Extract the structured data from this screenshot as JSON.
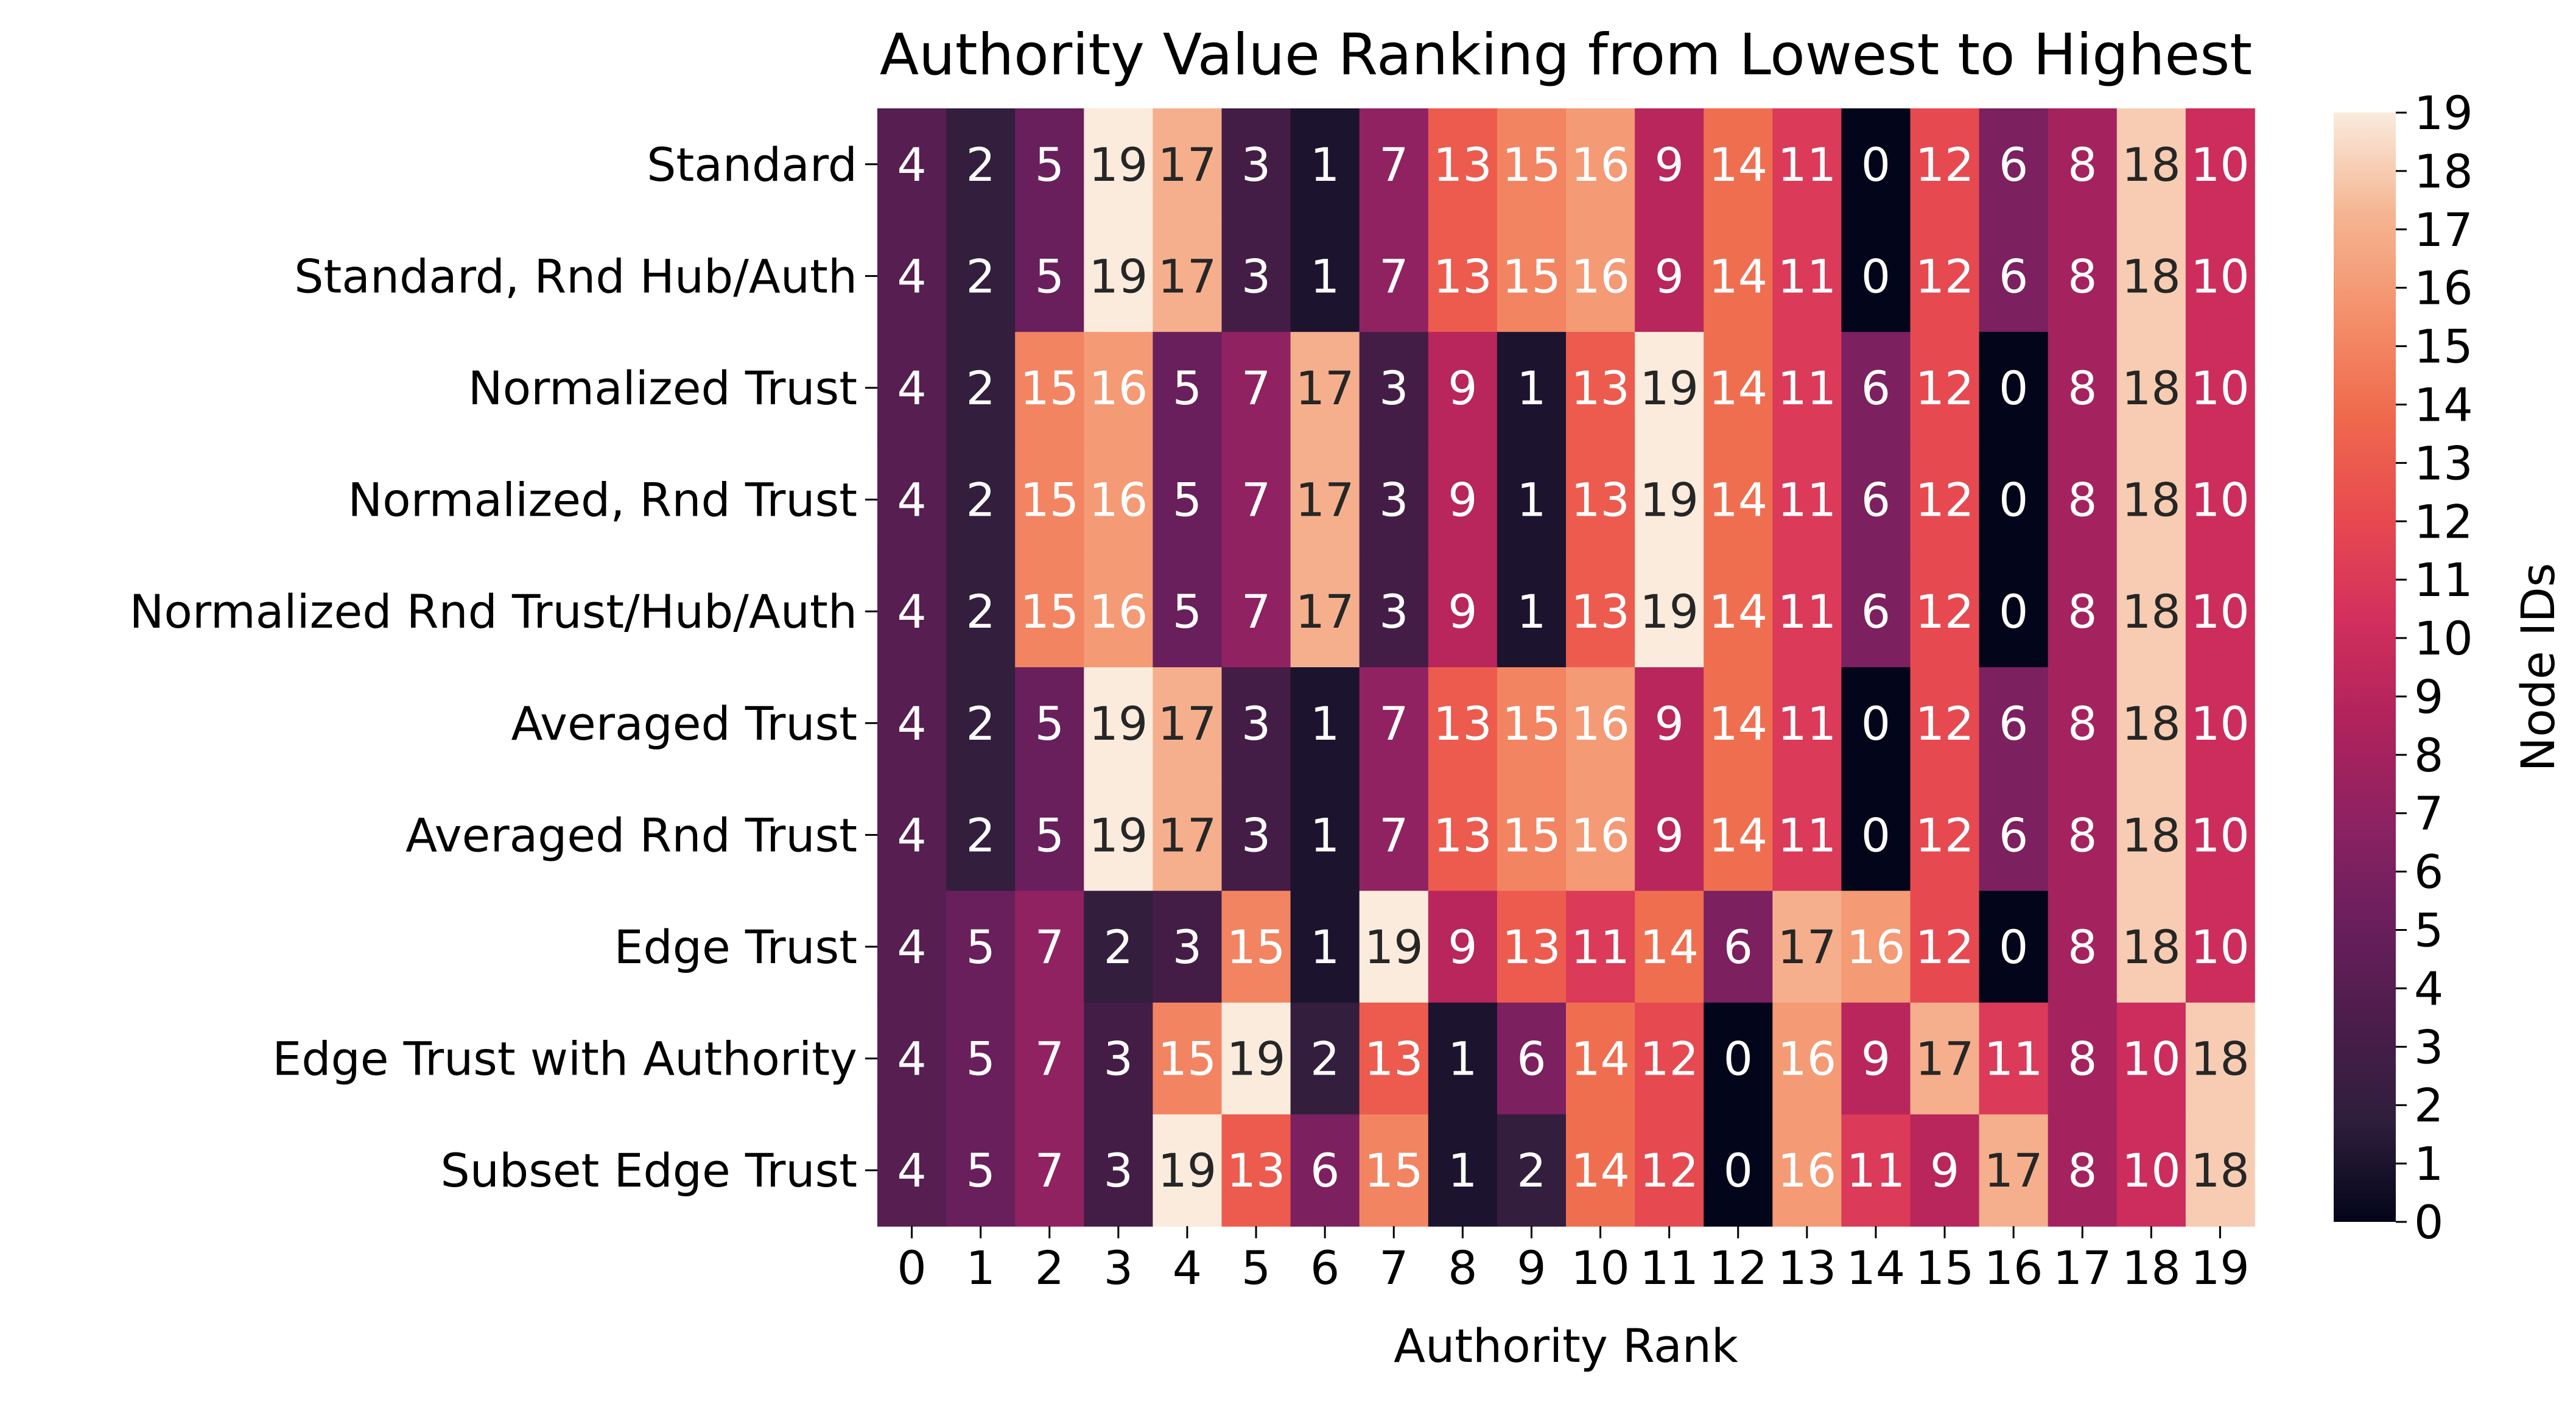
{
  "chart_data": {
    "type": "heatmap",
    "title": "Authority Value Ranking from Lowest to Highest",
    "xlabel": "Authority Rank",
    "ylabel": "",
    "colorbar_label": "Node IDs",
    "x": [
      0,
      1,
      2,
      3,
      4,
      5,
      6,
      7,
      8,
      9,
      10,
      11,
      12,
      13,
      14,
      15,
      16,
      17,
      18,
      19
    ],
    "x_tick_labels": [
      "0",
      "1",
      "2",
      "3",
      "4",
      "5",
      "6",
      "7",
      "8",
      "9",
      "10",
      "11",
      "12",
      "13",
      "14",
      "15",
      "16",
      "17",
      "18",
      "19"
    ],
    "rows": [
      "Standard",
      "Standard, Rnd Hub/Auth",
      "Normalized Trust",
      "Normalized, Rnd Trust",
      "Normalized Rnd Trust/Hub/Auth",
      "Averaged Trust",
      "Averaged Rnd Trust",
      "Edge Trust",
      "Edge Trust with Authority",
      "Subset Edge Trust"
    ],
    "values": [
      [
        4,
        2,
        5,
        19,
        17,
        3,
        1,
        7,
        13,
        15,
        16,
        9,
        14,
        11,
        0,
        12,
        6,
        8,
        18,
        10
      ],
      [
        4,
        2,
        5,
        19,
        17,
        3,
        1,
        7,
        13,
        15,
        16,
        9,
        14,
        11,
        0,
        12,
        6,
        8,
        18,
        10
      ],
      [
        4,
        2,
        15,
        16,
        5,
        7,
        17,
        3,
        9,
        1,
        13,
        19,
        14,
        11,
        6,
        12,
        0,
        8,
        18,
        10
      ],
      [
        4,
        2,
        15,
        16,
        5,
        7,
        17,
        3,
        9,
        1,
        13,
        19,
        14,
        11,
        6,
        12,
        0,
        8,
        18,
        10
      ],
      [
        4,
        2,
        15,
        16,
        5,
        7,
        17,
        3,
        9,
        1,
        13,
        19,
        14,
        11,
        6,
        12,
        0,
        8,
        18,
        10
      ],
      [
        4,
        2,
        5,
        19,
        17,
        3,
        1,
        7,
        13,
        15,
        16,
        9,
        14,
        11,
        0,
        12,
        6,
        8,
        18,
        10
      ],
      [
        4,
        2,
        5,
        19,
        17,
        3,
        1,
        7,
        13,
        15,
        16,
        9,
        14,
        11,
        0,
        12,
        6,
        8,
        18,
        10
      ],
      [
        4,
        5,
        7,
        2,
        3,
        15,
        1,
        19,
        9,
        13,
        11,
        14,
        6,
        17,
        16,
        12,
        0,
        8,
        18,
        10
      ],
      [
        4,
        5,
        7,
        3,
        15,
        19,
        2,
        13,
        1,
        6,
        14,
        12,
        0,
        16,
        9,
        17,
        11,
        8,
        10,
        18
      ],
      [
        4,
        5,
        7,
        3,
        19,
        13,
        6,
        15,
        1,
        2,
        14,
        12,
        0,
        16,
        11,
        9,
        17,
        8,
        10,
        18
      ]
    ],
    "value_range": [
      0,
      19
    ],
    "colorbar_ticks": [
      0,
      1,
      2,
      3,
      4,
      5,
      6,
      7,
      8,
      9,
      10,
      11,
      12,
      13,
      14,
      15,
      16,
      17,
      18,
      19
    ],
    "colormap": "rocket",
    "colormap_stops": [
      "#03051a",
      "#2e1e3c",
      "#4c1d4b",
      "#6b1f5d",
      "#8e2262",
      "#b1235b",
      "#d3305d",
      "#e84a4f",
      "#ef6a4d",
      "#f4906b",
      "#f5b592",
      "#faebdd"
    ],
    "annotation_light_color": "#ffffff",
    "annotation_dark_color": "#262626"
  }
}
